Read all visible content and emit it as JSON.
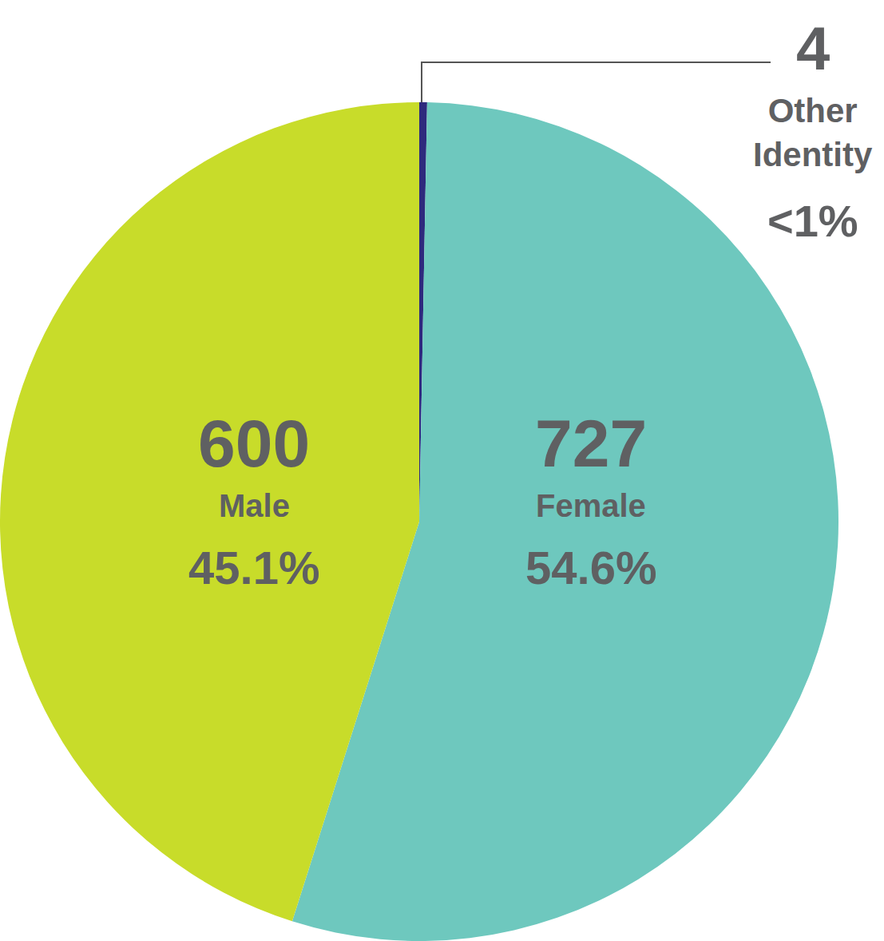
{
  "chart_data": {
    "type": "pie",
    "categories": [
      "Other Identity",
      "Female",
      "Male"
    ],
    "values": [
      0.3,
      54.6,
      45.1
    ],
    "value_labels": [
      "<1%",
      "54.6%",
      "45.1%"
    ],
    "counts": [
      4,
      727,
      600
    ],
    "colors": [
      "#2e2a7d",
      "#6ec8be",
      "#c8dc2a"
    ],
    "data_labels": true
  }
}
